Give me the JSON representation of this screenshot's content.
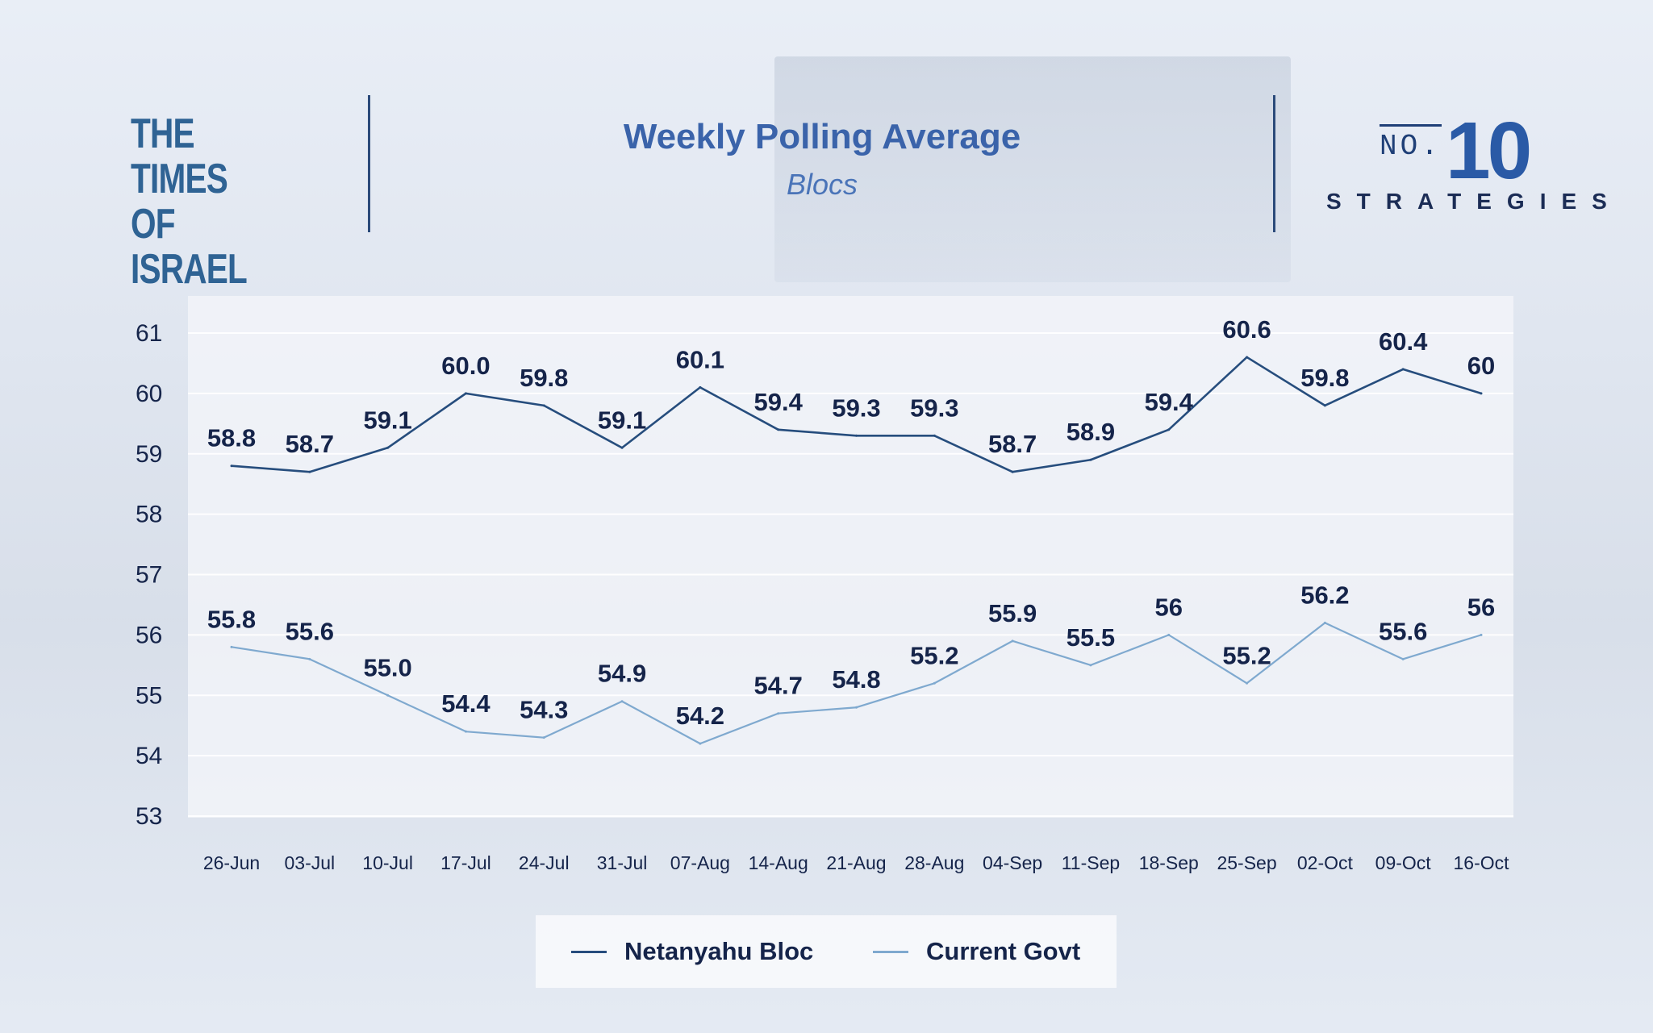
{
  "brand_left": {
    "line1": "THE TIMES",
    "line2": "OF ISRAEL"
  },
  "header": {
    "title": "Weekly Polling Average",
    "subtitle": "Blocs"
  },
  "brand_right": {
    "no": "NO.",
    "number": "10",
    "word": "STRATEGIES"
  },
  "colors": {
    "netanyahu": "#264d7d",
    "govt": "#7fa9cf",
    "label": "#15244a",
    "axis_text": "#15244a"
  },
  "chart_data": {
    "type": "line",
    "title": "Weekly Polling Average",
    "subtitle": "Blocs",
    "xlabel": "",
    "ylabel": "",
    "categories": [
      "26-Jun",
      "03-Jul",
      "10-Jul",
      "17-Jul",
      "24-Jul",
      "31-Jul",
      "07-Aug",
      "14-Aug",
      "21-Aug",
      "28-Aug",
      "04-Sep",
      "11-Sep",
      "18-Sep",
      "25-Sep",
      "02-Oct",
      "09-Oct",
      "16-Oct"
    ],
    "yticks": [
      53,
      54,
      55,
      56,
      57,
      58,
      59,
      60,
      61
    ],
    "ylim": [
      53,
      61
    ],
    "grid": true,
    "legend_position": "bottom",
    "series": [
      {
        "name": "Netanyahu Bloc",
        "values": [
          58.8,
          58.7,
          59.1,
          60.0,
          59.8,
          59.1,
          60.1,
          59.4,
          59.3,
          59.3,
          58.7,
          58.9,
          59.4,
          60.6,
          59.8,
          60.4,
          60
        ],
        "labels": [
          "58.8",
          "58.7",
          "59.1",
          "60.0",
          "59.8",
          "59.1",
          "60.1",
          "59.4",
          "59.3",
          "59.3",
          "58.7",
          "58.9",
          "59.4",
          "60.6",
          "59.8",
          "60.4",
          "60"
        ]
      },
      {
        "name": "Current Govt",
        "values": [
          55.8,
          55.6,
          55.0,
          54.4,
          54.3,
          54.9,
          54.2,
          54.7,
          54.8,
          55.2,
          55.9,
          55.5,
          56,
          55.2,
          56.2,
          55.6,
          56
        ],
        "labels": [
          "55.8",
          "55.6",
          "55.0",
          "54.4",
          "54.3",
          "54.9",
          "54.2",
          "54.7",
          "54.8",
          "55.2",
          "55.9",
          "55.5",
          "56",
          "55.2",
          "56.2",
          "55.6",
          "56"
        ]
      }
    ]
  },
  "legend": [
    {
      "label": "Netanyahu Bloc"
    },
    {
      "label": "Current Govt"
    }
  ]
}
